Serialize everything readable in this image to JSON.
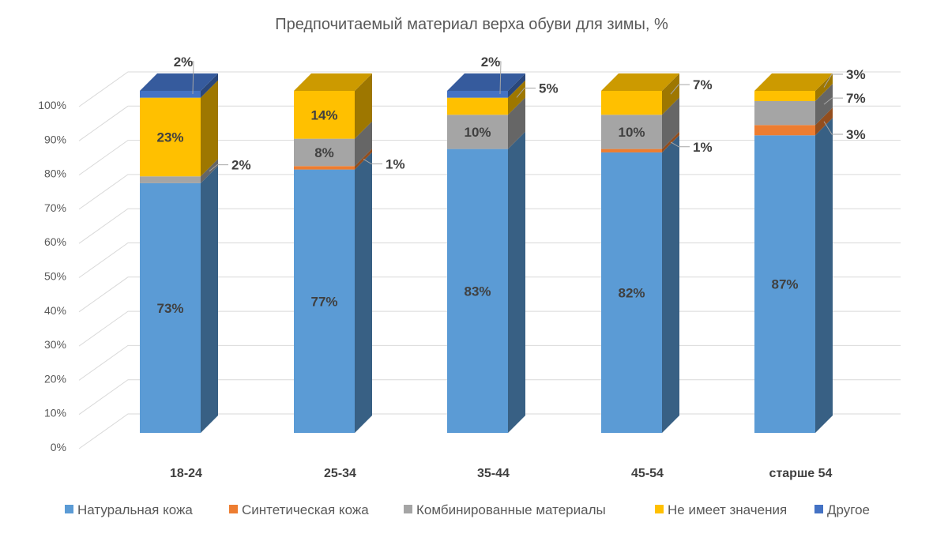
{
  "chart_data": {
    "type": "bar",
    "stacked": true,
    "three_d": true,
    "title": "Предпочитаемый материал верха обуви для зимы, %",
    "categories": [
      "18-24",
      "25-34",
      "35-44",
      "45-54",
      "старше 54"
    ],
    "ylim": [
      0,
      100
    ],
    "yticks": [
      "0%",
      "10%",
      "20%",
      "30%",
      "40%",
      "50%",
      "60%",
      "70%",
      "80%",
      "90%",
      "100%"
    ],
    "grid": true,
    "legend_position": "bottom",
    "series": [
      {
        "name": "Натуральная кожа",
        "color": "#5B9BD5",
        "values": [
          73,
          77,
          83,
          82,
          87
        ]
      },
      {
        "name": "Синтетическая кожа",
        "color": "#ED7D31",
        "values": [
          0,
          1,
          0,
          1,
          3
        ]
      },
      {
        "name": "Комбинированные материалы",
        "color": "#A5A5A5",
        "values": [
          2,
          8,
          10,
          10,
          7
        ]
      },
      {
        "name": "Не имеет значения",
        "color": "#FFC000",
        "values": [
          23,
          14,
          5,
          7,
          3
        ]
      },
      {
        "name": "Другое",
        "color": "#4472C4",
        "values": [
          2,
          0,
          2,
          0,
          0
        ]
      }
    ],
    "labels": [
      [
        "73%",
        "",
        "2%",
        "23%",
        "2%"
      ],
      [
        "77%",
        "1%",
        "8%",
        "14%",
        ""
      ],
      [
        "83%",
        "",
        "10%",
        "5%",
        "2%"
      ],
      [
        "82%",
        "1%",
        "10%",
        "7%",
        ""
      ],
      [
        "87%",
        "3%",
        "7%",
        "3%",
        ""
      ]
    ]
  }
}
